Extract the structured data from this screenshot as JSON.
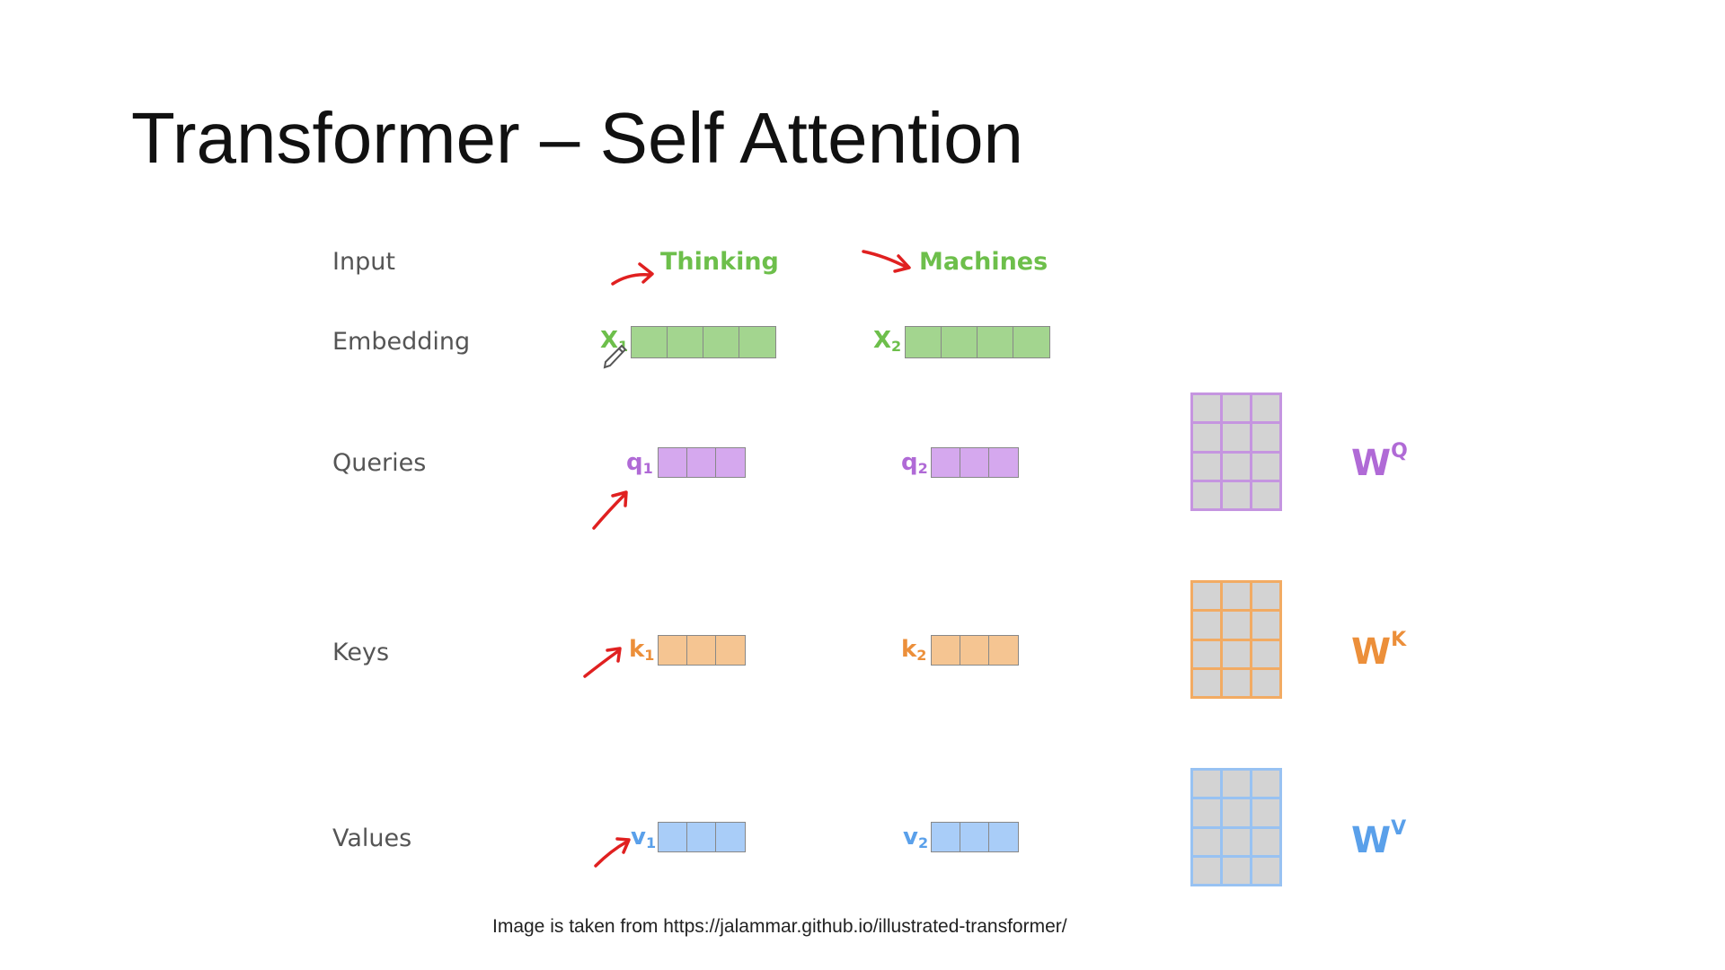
{
  "slide": {
    "title": "Transformer – Self Attention",
    "caption": "Image is taken from https://jalammar.github.io/illustrated-transformer/"
  },
  "rows": {
    "input": "Input",
    "embedding": "Embedding",
    "queries": "Queries",
    "keys": "Keys",
    "values": "Values"
  },
  "words": [
    "Thinking",
    "Machines"
  ],
  "vectors": {
    "x1": {
      "base": "X",
      "sub": "1"
    },
    "x2": {
      "base": "X",
      "sub": "2"
    },
    "q1": {
      "base": "q",
      "sub": "1"
    },
    "q2": {
      "base": "q",
      "sub": "2"
    },
    "k1": {
      "base": "k",
      "sub": "1"
    },
    "k2": {
      "base": "k",
      "sub": "2"
    },
    "v1": {
      "base": "v",
      "sub": "1"
    },
    "v2": {
      "base": "v",
      "sub": "2"
    }
  },
  "weights": {
    "wq": {
      "base": "W",
      "sup": "Q"
    },
    "wk": {
      "base": "W",
      "sup": "K"
    },
    "wv": {
      "base": "W",
      "sup": "V"
    }
  },
  "colors": {
    "green": "#6dbf4b",
    "purple": "#b06ad6",
    "orange": "#ec8f3a",
    "blue": "#5aa0ea",
    "annotation_red": "#e02020"
  }
}
